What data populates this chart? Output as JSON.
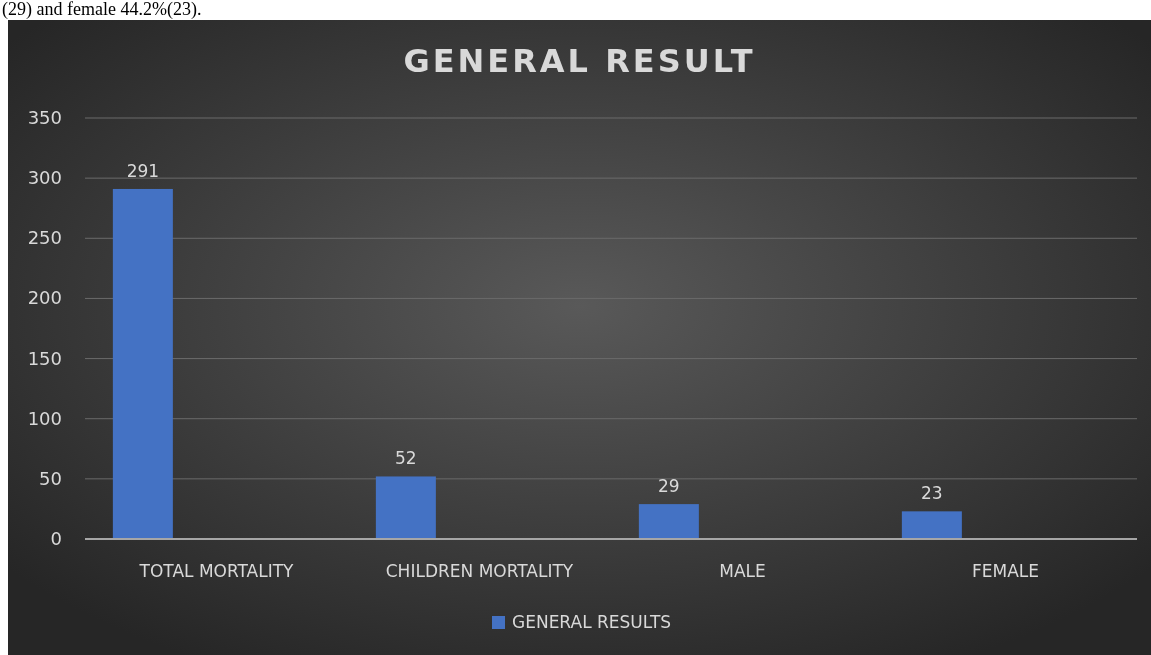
{
  "chart_data": {
    "type": "bar",
    "title": "GENERAL RESULT",
    "annotations": [
      "(29) and female 44.2%(23)."
    ],
    "categories": [
      "TOTAL MORTALITY",
      "CHILDREN MORTALITY",
      "MALE",
      "FEMALE"
    ],
    "series": [
      {
        "name": "GENERAL RESULTS",
        "color": "#4472c4",
        "values": [
          291,
          52,
          29,
          23
        ]
      }
    ],
    "ylim": [
      0,
      350
    ],
    "yticks": [
      0,
      50,
      100,
      150,
      200,
      250,
      300,
      350
    ],
    "grid": "y",
    "legend": "bottom",
    "data_labels": true
  }
}
